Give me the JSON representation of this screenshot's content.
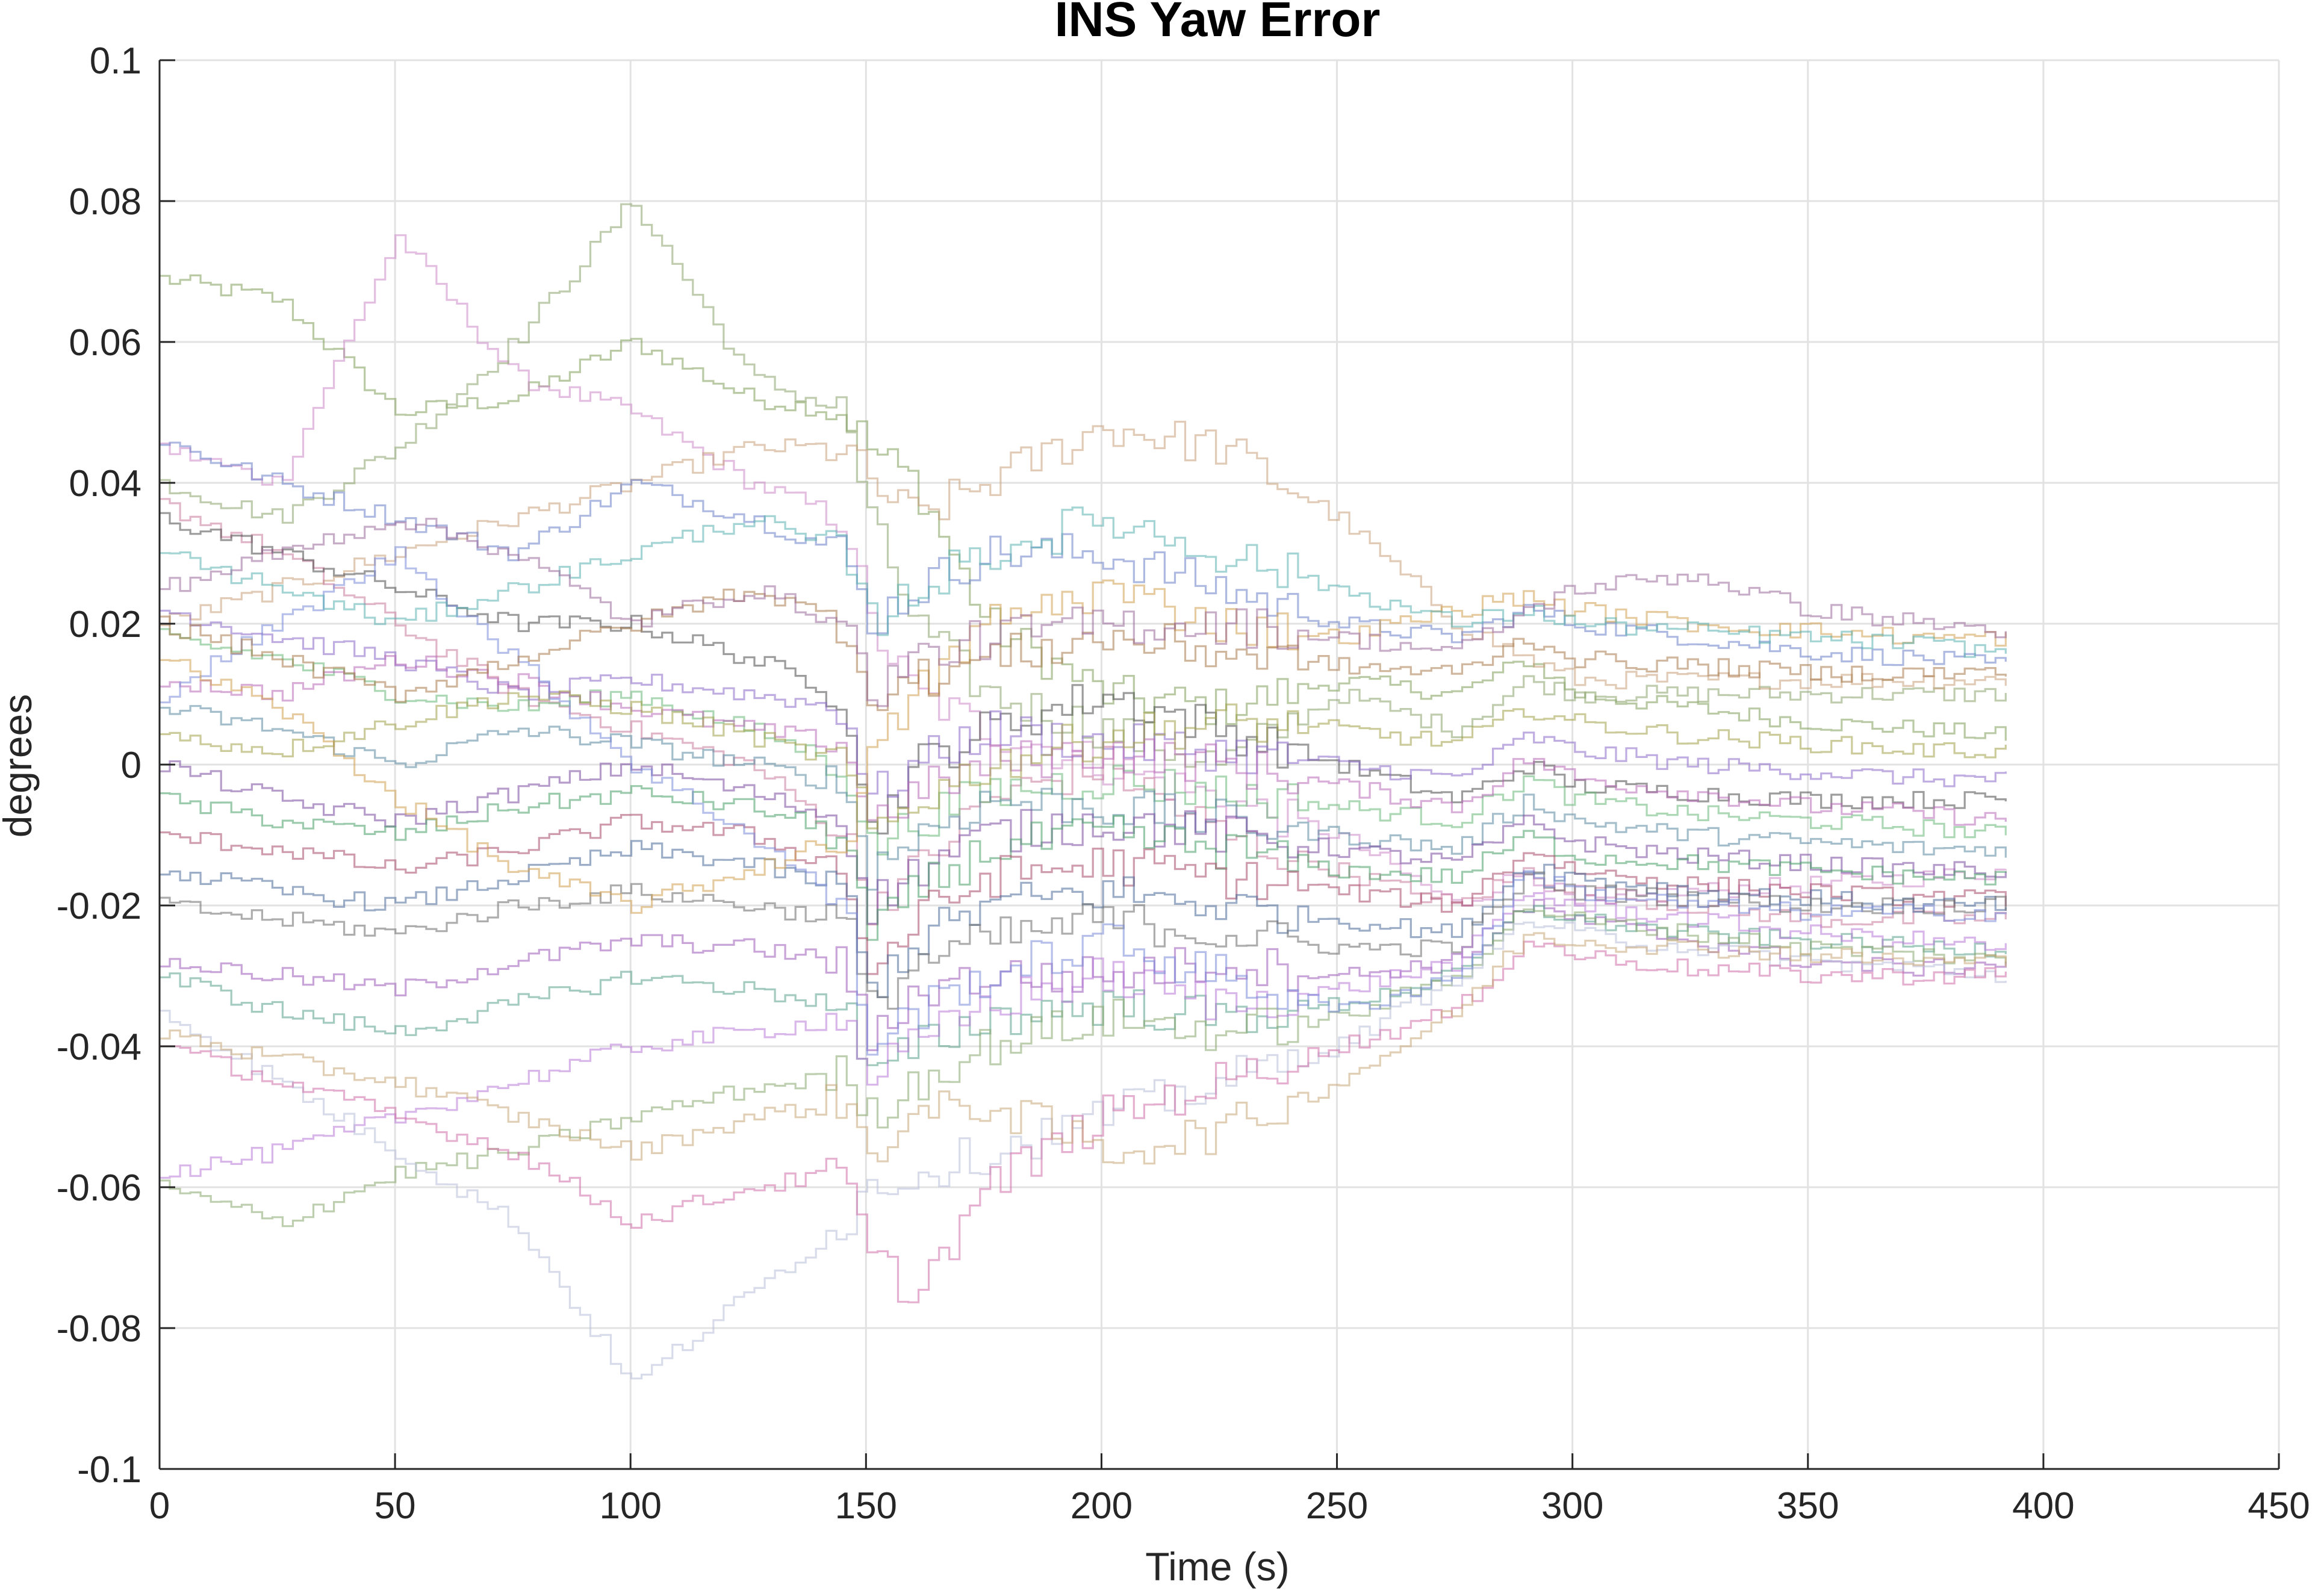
{
  "chart_data": {
    "type": "line",
    "title": "INS Yaw Error",
    "xlabel": "Time (s)",
    "ylabel": "degrees",
    "xlim": [
      0,
      450
    ],
    "ylim": [
      -0.1,
      0.1
    ],
    "x_ticks": [
      0,
      50,
      100,
      150,
      200,
      250,
      300,
      350,
      400,
      450
    ],
    "x_tick_labels": [
      "0",
      "50",
      "100",
      "150",
      "200",
      "250",
      "300",
      "350",
      "400",
      "450"
    ],
    "y_ticks": [
      -0.1,
      -0.08,
      -0.06,
      -0.04,
      -0.02,
      0,
      0.02,
      0.04,
      0.06,
      0.08,
      0.1
    ],
    "y_tick_labels": [
      "-0.1",
      "-0.08",
      "-0.06",
      "-0.04",
      "-0.02",
      "0",
      "0.02",
      "0.04",
      "0.06",
      "0.08",
      "0.1"
    ],
    "grid": true,
    "legend": "none",
    "x": [
      0,
      25,
      50,
      75,
      100,
      125,
      145,
      150,
      160,
      175,
      200,
      225,
      250,
      275,
      290,
      300,
      325,
      350,
      375,
      392
    ],
    "series": [
      {
        "color": "#7f9f5a",
        "values": [
          0.069,
          0.066,
          0.05,
          0.052,
          0.06,
          0.052,
          0.05,
          0.045,
          0.04,
          0.02,
          0.01,
          0.008,
          0.012,
          0.01,
          0.015,
          0.01,
          0.008,
          0.006,
          0.005,
          0.004
        ]
      },
      {
        "color": "#cc88c8",
        "values": [
          0.045,
          0.04,
          0.075,
          0.055,
          0.05,
          0.04,
          0.035,
          0.02,
          0.01,
          0.005,
          0.0,
          -0.005,
          -0.01,
          -0.02,
          -0.015,
          -0.02,
          -0.018,
          -0.017,
          -0.016,
          -0.015
        ]
      },
      {
        "color": "#8aa36a",
        "values": [
          0.04,
          0.035,
          0.045,
          0.06,
          0.08,
          0.055,
          0.05,
          0.035,
          0.02,
          0.01,
          0.005,
          0.0,
          0.01,
          0.005,
          0.012,
          0.01,
          0.01,
          0.01,
          0.01,
          0.01
        ]
      },
      {
        "color": "#c8a07a",
        "values": [
          0.02,
          0.025,
          0.03,
          0.035,
          0.04,
          0.045,
          0.045,
          0.04,
          0.035,
          0.04,
          0.048,
          0.045,
          0.035,
          0.02,
          0.015,
          0.012,
          0.012,
          0.012,
          0.012,
          0.012
        ]
      },
      {
        "color": "#6a7fc8",
        "values": [
          0.046,
          0.04,
          0.035,
          0.03,
          0.04,
          0.035,
          0.03,
          0.02,
          0.025,
          0.03,
          0.03,
          0.025,
          0.02,
          0.018,
          0.022,
          0.02,
          0.018,
          0.016,
          0.015,
          0.014
        ]
      },
      {
        "color": "#c87a9a",
        "values": [
          0.037,
          0.03,
          0.02,
          0.01,
          0.005,
          0.0,
          -0.01,
          -0.02,
          -0.015,
          -0.005,
          0.0,
          -0.01,
          -0.015,
          -0.02,
          -0.015,
          -0.018,
          -0.02,
          -0.022,
          -0.022,
          -0.022
        ]
      },
      {
        "color": "#4a4a4a",
        "values": [
          0.035,
          0.03,
          0.025,
          0.02,
          0.02,
          0.015,
          0.01,
          -0.01,
          0.0,
          0.005,
          0.01,
          0.005,
          0.0,
          -0.005,
          0.0,
          -0.003,
          -0.004,
          -0.005,
          -0.005,
          -0.005
        ]
      },
      {
        "color": "#8a6ac8",
        "values": [
          0.022,
          0.018,
          0.015,
          0.01,
          0.012,
          0.01,
          0.008,
          -0.005,
          0.0,
          0.005,
          0.003,
          0.002,
          0.0,
          -0.002,
          0.004,
          0.002,
          0.0,
          -0.001,
          -0.002,
          -0.002
        ]
      },
      {
        "color": "#6ab87a",
        "values": [
          0.018,
          0.015,
          0.01,
          0.008,
          0.01,
          0.005,
          0.0,
          -0.012,
          -0.008,
          -0.004,
          -0.002,
          -0.004,
          -0.006,
          -0.008,
          -0.002,
          -0.005,
          -0.007,
          -0.008,
          -0.009,
          -0.01
        ]
      },
      {
        "color": "#b86ab8",
        "values": [
          0.012,
          0.01,
          0.015,
          0.012,
          0.008,
          0.005,
          0.003,
          -0.008,
          -0.004,
          0.0,
          0.002,
          0.0,
          -0.003,
          -0.006,
          0.001,
          -0.002,
          -0.004,
          -0.006,
          -0.007,
          -0.008
        ]
      },
      {
        "color": "#5a8aa0",
        "values": [
          0.008,
          0.005,
          0.0,
          0.005,
          0.003,
          0.0,
          -0.003,
          -0.015,
          -0.01,
          -0.005,
          -0.006,
          -0.008,
          -0.01,
          -0.012,
          -0.005,
          -0.008,
          -0.01,
          -0.011,
          -0.012,
          -0.012
        ]
      },
      {
        "color": "#a0a04a",
        "values": [
          0.004,
          0.002,
          0.006,
          0.01,
          0.008,
          0.004,
          0.0,
          -0.01,
          -0.005,
          0.0,
          0.004,
          0.006,
          0.005,
          0.003,
          0.008,
          0.006,
          0.004,
          0.003,
          0.002,
          0.002
        ]
      },
      {
        "color": "#7a4aa0",
        "values": [
          0.0,
          -0.005,
          -0.008,
          -0.004,
          0.0,
          -0.004,
          -0.008,
          -0.02,
          -0.015,
          -0.01,
          -0.008,
          -0.01,
          -0.012,
          -0.014,
          -0.008,
          -0.011,
          -0.013,
          -0.014,
          -0.015,
          -0.015
        ]
      },
      {
        "color": "#48a068",
        "values": [
          -0.005,
          -0.008,
          -0.01,
          -0.006,
          -0.004,
          -0.006,
          -0.01,
          -0.025,
          -0.018,
          -0.012,
          -0.01,
          -0.012,
          -0.015,
          -0.016,
          -0.01,
          -0.013,
          -0.014,
          -0.015,
          -0.016,
          -0.016
        ]
      },
      {
        "color": "#a84a6a",
        "values": [
          -0.01,
          -0.012,
          -0.015,
          -0.012,
          -0.008,
          -0.01,
          -0.015,
          -0.03,
          -0.022,
          -0.016,
          -0.014,
          -0.016,
          -0.018,
          -0.02,
          -0.012,
          -0.015,
          -0.017,
          -0.018,
          -0.019,
          -0.019
        ]
      },
      {
        "color": "#4a6a9a",
        "values": [
          -0.015,
          -0.018,
          -0.02,
          -0.016,
          -0.012,
          -0.014,
          -0.018,
          -0.032,
          -0.025,
          -0.02,
          -0.018,
          -0.02,
          -0.022,
          -0.024,
          -0.014,
          -0.016,
          -0.018,
          -0.019,
          -0.02,
          -0.02
        ]
      },
      {
        "color": "#6a6a6a",
        "values": [
          -0.02,
          -0.022,
          -0.024,
          -0.02,
          -0.018,
          -0.02,
          -0.022,
          -0.035,
          -0.028,
          -0.025,
          -0.022,
          -0.024,
          -0.026,
          -0.026,
          -0.016,
          -0.018,
          -0.019,
          -0.02,
          -0.02,
          -0.02
        ]
      },
      {
        "color": "#9a5ab8",
        "values": [
          -0.028,
          -0.03,
          -0.032,
          -0.028,
          -0.025,
          -0.026,
          -0.028,
          -0.04,
          -0.032,
          -0.03,
          -0.03,
          -0.028,
          -0.03,
          -0.028,
          -0.02,
          -0.022,
          -0.025,
          -0.028,
          -0.029,
          -0.028
        ]
      },
      {
        "color": "#5aa08a",
        "values": [
          -0.03,
          -0.035,
          -0.038,
          -0.034,
          -0.03,
          -0.032,
          -0.034,
          -0.045,
          -0.04,
          -0.036,
          -0.034,
          -0.036,
          -0.034,
          -0.03,
          -0.02,
          -0.022,
          -0.024,
          -0.025,
          -0.026,
          -0.026
        ]
      },
      {
        "color": "#b87ad8",
        "values": [
          -0.058,
          -0.055,
          -0.05,
          -0.045,
          -0.04,
          -0.038,
          -0.036,
          -0.044,
          -0.04,
          -0.034,
          -0.03,
          -0.034,
          -0.032,
          -0.028,
          -0.018,
          -0.02,
          -0.022,
          -0.024,
          -0.025,
          -0.026
        ]
      },
      {
        "color": "#88a870",
        "values": [
          -0.06,
          -0.065,
          -0.058,
          -0.055,
          -0.05,
          -0.046,
          -0.044,
          -0.05,
          -0.045,
          -0.04,
          -0.036,
          -0.038,
          -0.036,
          -0.03,
          -0.02,
          -0.022,
          -0.024,
          -0.026,
          -0.027,
          -0.028
        ]
      },
      {
        "color": "#b8c0d8",
        "values": [
          -0.035,
          -0.045,
          -0.055,
          -0.065,
          -0.088,
          -0.075,
          -0.065,
          -0.06,
          -0.058,
          -0.055,
          -0.05,
          -0.045,
          -0.04,
          -0.03,
          -0.022,
          -0.024,
          -0.026,
          -0.028,
          -0.029,
          -0.03
        ]
      },
      {
        "color": "#d070a8",
        "values": [
          -0.04,
          -0.045,
          -0.05,
          -0.055,
          -0.065,
          -0.06,
          -0.058,
          -0.07,
          -0.075,
          -0.06,
          -0.05,
          -0.045,
          -0.04,
          -0.035,
          -0.025,
          -0.027,
          -0.029,
          -0.03,
          -0.03,
          -0.03
        ]
      },
      {
        "color": "#c8a878",
        "values": [
          -0.038,
          -0.042,
          -0.045,
          -0.05,
          -0.055,
          -0.05,
          -0.048,
          -0.055,
          -0.05,
          -0.048,
          -0.055,
          -0.052,
          -0.045,
          -0.035,
          -0.024,
          -0.025,
          -0.026,
          -0.027,
          -0.028,
          -0.028
        ]
      },
      {
        "color": "#7a8ad8",
        "values": [
          0.01,
          0.02,
          0.03,
          0.015,
          0.0,
          -0.01,
          -0.02,
          -0.04,
          -0.035,
          -0.03,
          -0.025,
          -0.03,
          -0.035,
          -0.03,
          -0.015,
          -0.018,
          -0.02,
          -0.021,
          -0.021,
          -0.021
        ]
      },
      {
        "color": "#d0a050",
        "values": [
          0.015,
          0.008,
          -0.005,
          -0.015,
          -0.02,
          -0.015,
          -0.01,
          0.0,
          0.01,
          0.02,
          0.025,
          0.02,
          0.018,
          0.022,
          0.024,
          0.022,
          0.02,
          0.019,
          0.018,
          0.018
        ]
      },
      {
        "color": "#5ab0b0",
        "values": [
          0.03,
          0.025,
          0.02,
          0.025,
          0.03,
          0.035,
          0.03,
          0.02,
          0.025,
          0.03,
          0.035,
          0.03,
          0.025,
          0.02,
          0.022,
          0.02,
          0.019,
          0.018,
          0.017,
          0.016
        ]
      },
      {
        "color": "#a87a4a",
        "values": [
          0.02,
          0.015,
          0.01,
          0.015,
          0.02,
          0.025,
          0.02,
          0.01,
          0.012,
          0.015,
          0.018,
          0.016,
          0.014,
          0.013,
          0.018,
          0.015,
          0.014,
          0.013,
          0.013,
          0.013
        ]
      },
      {
        "color": "#9a6a9a",
        "values": [
          0.025,
          0.03,
          0.035,
          0.03,
          0.02,
          0.025,
          0.02,
          0.01,
          0.015,
          0.018,
          0.02,
          0.02,
          0.018,
          0.016,
          0.022,
          0.025,
          0.027,
          0.022,
          0.02,
          0.019
        ]
      }
    ]
  }
}
